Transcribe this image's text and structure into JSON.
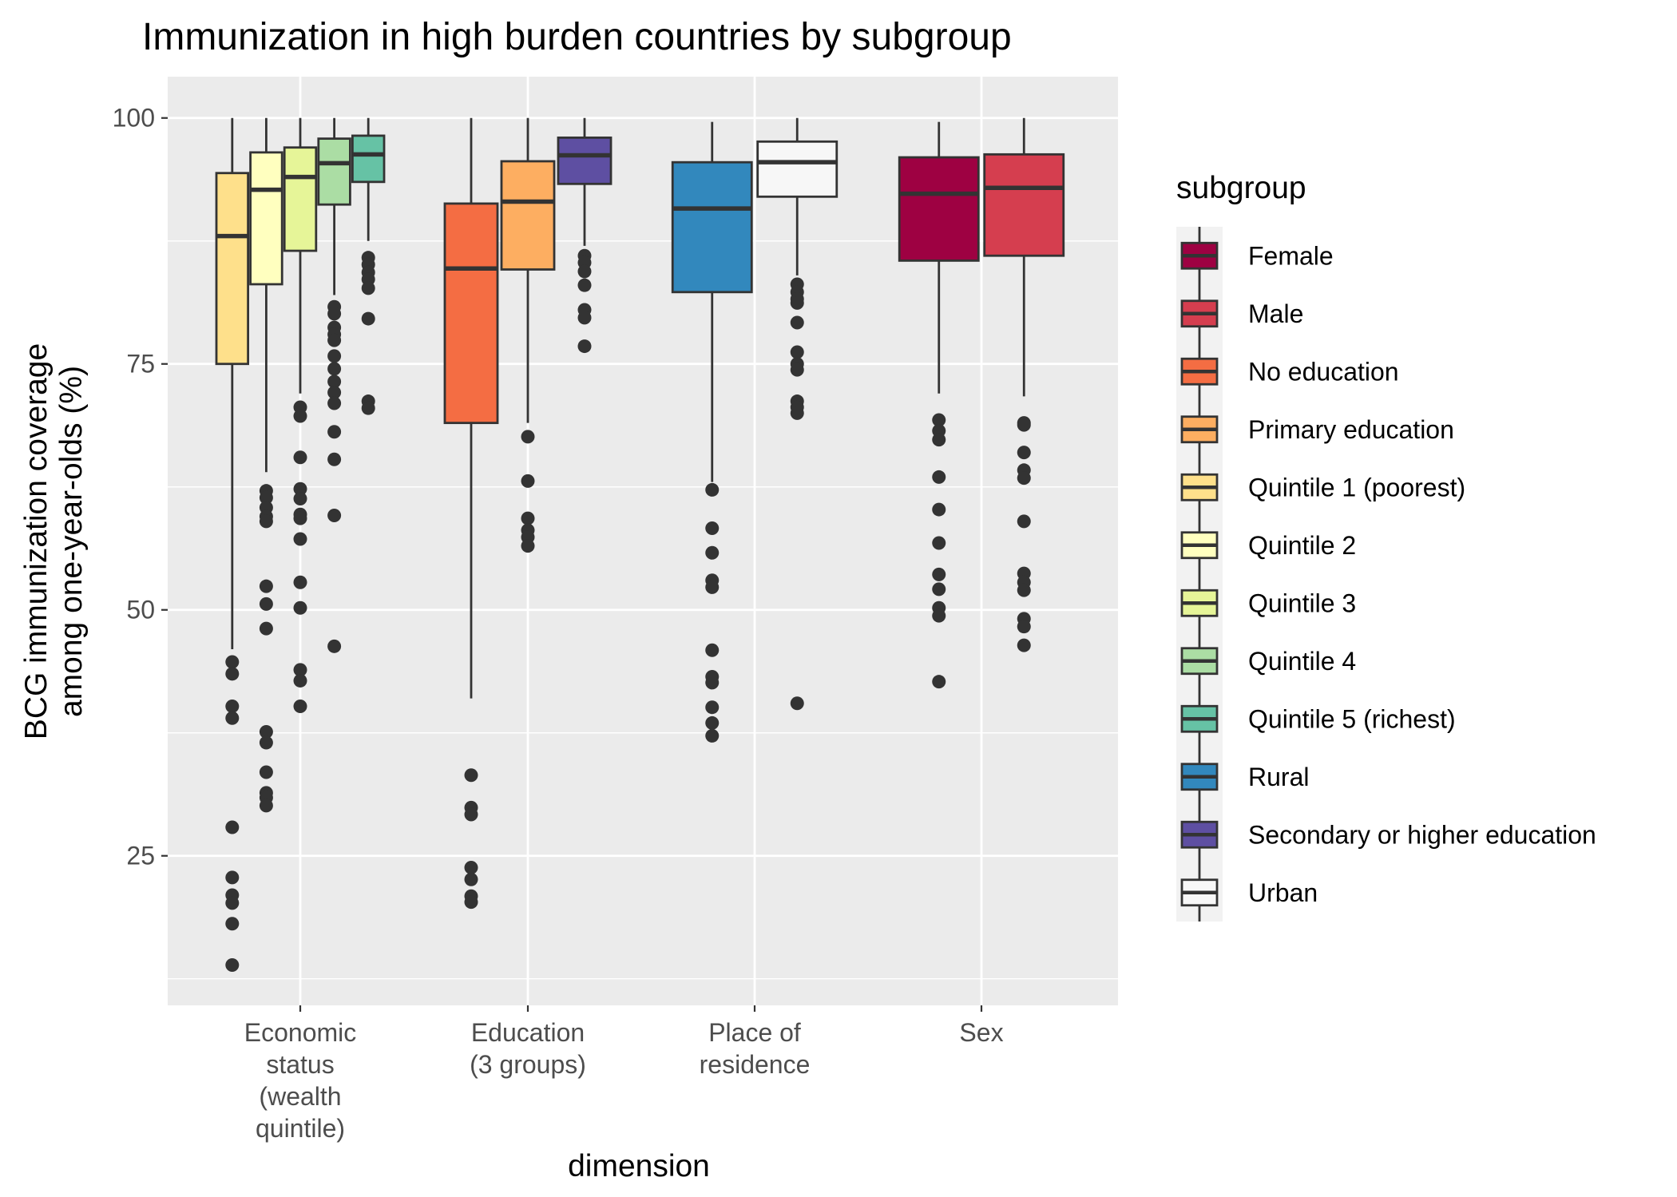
{
  "chart_data": {
    "type": "box",
    "title": "Immunization in high burden countries by subgroup",
    "xlabel": "dimension",
    "ylabel_lines": [
      "BCG immunization coverage",
      "among one-year-olds (%)"
    ],
    "ylim": [
      9.8,
      104.2
    ],
    "y_ticks": [
      25,
      50,
      75,
      100
    ],
    "y_minor_ticks": [
      12.5,
      37.5,
      62.5,
      87.5
    ],
    "grid": true,
    "legend": {
      "title": "subgroup",
      "position": "right"
    },
    "categories": [
      {
        "key": "econ",
        "label_lines": [
          "Economic",
          "status",
          "(wealth",
          "quintile)"
        ]
      },
      {
        "key": "edu",
        "label_lines": [
          "Education",
          "(3 groups)"
        ]
      },
      {
        "key": "place",
        "label_lines": [
          "Place of",
          "residence"
        ]
      },
      {
        "key": "sex",
        "label_lines": [
          "Sex"
        ]
      }
    ],
    "series": [
      {
        "name": "Female",
        "color": "#9E0142",
        "category": "sex",
        "slot": 0,
        "slots": 2,
        "whisker_low": 72.0,
        "q1": 85.5,
        "median": 92.3,
        "q3": 96.0,
        "whisker_high": 99.6,
        "outliers": [
          69.3,
          68.2,
          67.3,
          63.5,
          60.2,
          56.8,
          53.6,
          52.1,
          50.2,
          49.4,
          42.7
        ]
      },
      {
        "name": "Male",
        "color": "#D53E4F",
        "category": "sex",
        "slot": 1,
        "slots": 2,
        "whisker_low": 71.7,
        "q1": 86.0,
        "median": 92.9,
        "q3": 96.3,
        "whisker_high": 100.0,
        "outliers": [
          69.0,
          68.8,
          66.0,
          64.2,
          63.4,
          59.0,
          53.7,
          52.8,
          52.0,
          49.1,
          48.3,
          46.4
        ]
      },
      {
        "name": "No education",
        "color": "#F46D43",
        "category": "edu",
        "slot": 0,
        "slots": 3,
        "whisker_low": 41.0,
        "q1": 69.0,
        "median": 84.7,
        "q3": 91.3,
        "whisker_high": 100.0,
        "outliers": [
          33.2,
          29.9,
          29.2,
          23.8,
          22.6,
          20.9,
          20.3
        ]
      },
      {
        "name": "Primary education",
        "color": "#FDAE61",
        "category": "edu",
        "slot": 1,
        "slots": 3,
        "whisker_low": 69.0,
        "q1": 84.6,
        "median": 91.5,
        "q3": 95.6,
        "whisker_high": 100.0,
        "outliers": [
          67.6,
          63.1,
          59.3,
          58.1,
          57.4,
          56.5
        ]
      },
      {
        "name": "Quintile 1 (poorest)",
        "color": "#FEE08B",
        "category": "econ",
        "slot": 0,
        "slots": 5,
        "whisker_low": 46.0,
        "q1": 75.0,
        "median": 88.0,
        "q3": 94.4,
        "whisker_high": 100.0,
        "outliers": [
          44.7,
          43.5,
          40.2,
          39.0,
          27.9,
          22.8,
          21.0,
          20.2,
          18.1,
          13.9
        ]
      },
      {
        "name": "Quintile 2",
        "color": "#FFFFBF",
        "category": "econ",
        "slot": 1,
        "slots": 5,
        "whisker_low": 64.0,
        "q1": 83.1,
        "median": 92.7,
        "q3": 96.5,
        "whisker_high": 100.0,
        "outliers": [
          62.1,
          61.4,
          60.4,
          59.5,
          59.0,
          52.4,
          50.6,
          48.1,
          37.6,
          36.5,
          33.5,
          31.4,
          30.9,
          30.1
        ]
      },
      {
        "name": "Quintile 3",
        "color": "#E6F598",
        "category": "econ",
        "slot": 2,
        "slots": 5,
        "whisker_low": 72.0,
        "q1": 86.5,
        "median": 94.0,
        "q3": 97.0,
        "whisker_high": 100.0,
        "outliers": [
          70.6,
          69.7,
          65.5,
          62.3,
          61.3,
          59.7,
          59.3,
          57.2,
          52.8,
          50.2,
          43.9,
          42.8,
          40.2
        ]
      },
      {
        "name": "Quintile 4",
        "color": "#ABDDA4",
        "category": "econ",
        "slot": 3,
        "slots": 5,
        "whisker_low": 82.0,
        "q1": 91.2,
        "median": 95.4,
        "q3": 97.9,
        "whisker_high": 100.0,
        "outliers": [
          80.8,
          80.1,
          78.7,
          78.0,
          77.4,
          75.8,
          74.5,
          73.2,
          72.1,
          71.0,
          68.1,
          65.3,
          59.6,
          46.3
        ]
      },
      {
        "name": "Quintile 5 (richest)",
        "color": "#66C2A5",
        "category": "econ",
        "slot": 4,
        "slots": 5,
        "whisker_low": 87.5,
        "q1": 93.5,
        "median": 96.3,
        "q3": 98.2,
        "whisker_high": 100.0,
        "outliers": [
          85.8,
          85.1,
          84.3,
          83.6,
          82.7,
          79.6,
          71.2,
          70.5
        ]
      },
      {
        "name": "Rural",
        "color": "#3288BD",
        "category": "place",
        "slot": 0,
        "slots": 2,
        "whisker_low": 63.0,
        "q1": 82.3,
        "median": 90.8,
        "q3": 95.5,
        "whisker_high": 99.6,
        "outliers": [
          62.2,
          58.3,
          55.8,
          53.0,
          52.3,
          45.9,
          43.2,
          42.6,
          40.1,
          38.5,
          37.2
        ]
      },
      {
        "name": "Secondary or higher education",
        "color": "#5E4FA2",
        "category": "edu",
        "slot": 2,
        "slots": 3,
        "whisker_low": 87.0,
        "q1": 93.3,
        "median": 96.2,
        "q3": 98.0,
        "whisker_high": 100.0,
        "outliers": [
          86.0,
          85.3,
          84.4,
          83.0,
          80.5,
          79.7,
          76.8
        ]
      },
      {
        "name": "Urban",
        "color": "#F7F7F7",
        "category": "place",
        "slot": 1,
        "slots": 2,
        "whisker_low": 84.0,
        "q1": 92.0,
        "median": 95.5,
        "q3": 97.6,
        "whisker_high": 100.0,
        "outliers": [
          83.1,
          82.3,
          81.6,
          81.2,
          79.2,
          76.2,
          75.0,
          74.4,
          71.2,
          70.6,
          70.0,
          40.5
        ]
      }
    ]
  }
}
